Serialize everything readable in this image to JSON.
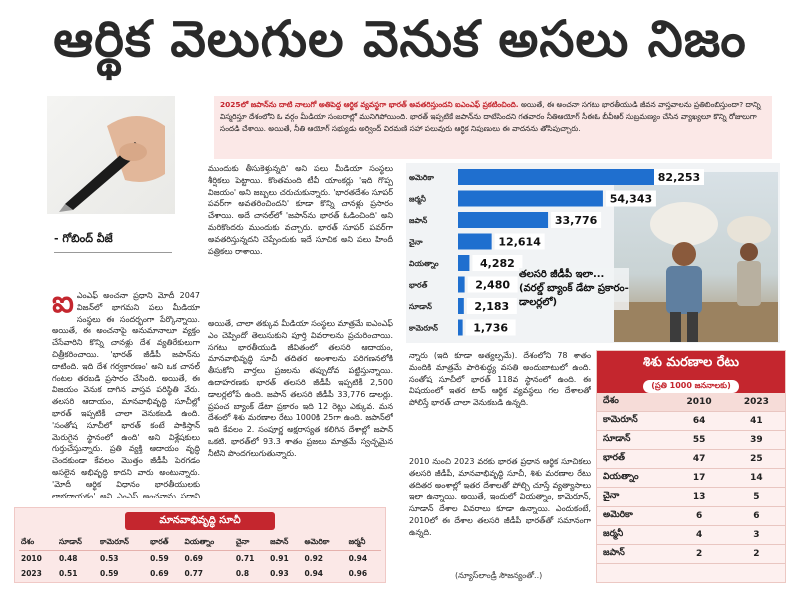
{
  "headline": "ఆర్థిక వెలుగుల వెనుక అసలు నిజం",
  "byline": "- గోబింద్ వీజే",
  "intro": {
    "highlight": "2025లో జపాన్‌ను దాటి నాలుగో అతిపెద్ద ఆర్థిక వ్యవస్థగా భారత్ అవతరిస్తుందని ఐఎంఎఫ్ ప్రకటించింది.",
    "text": " అయితే, ఈ అంచనా సగటు భారతీయుడి జీవన వాస్తవాలను ప్రతిబింబిస్తుందా? దాన్ని విస్మరిస్తూ దేశంలోని ఓ వర్గం మీడియా సంబరాల్లో మునిగిపోయింది. భారత్ ఇప్పటికే జపాన్‌ను దాటేసిందని గతవారం నీతిఆయోగ్ సీఈఓ బీవీఆర్ సుబ్రమణ్యం చేసిన వ్యాఖ్యలూ కొన్ని రోజులుగా సందడి చేశాయి. అయితే, నీతి ఆయోగ్ సభ్యుడు అర్వింద్ విరమణి సహా పలువురు ఆర్థిక నిపుణులు ఈ వాదనను తోసిపుచ్చారు."
  },
  "col1": {
    "dropcap": "ఐ",
    "text": "ఎంఎఫ్ అంచనా ప్రధాని మోదీ 2047 విజన్‌లో భాగమని పలు మీడియా సంస్థలు ఈ సందర్భంగా పేర్కొన్నాయి. అయితే, ఈ అంచనాపై అనుమానాలూ వ్యక్తం చేసేవారిని కొన్ని చానళ్లు దేశ వ్యతిరేకులుగా చిత్రీకరించాయి. 'భారత్ జీడీపీ జపాన్‌ను దాటింది. ఇది దేశ గర్వకారణం' అని ఒక చానల్ గంటల తరబడి ప్రసారం చేసింది. అయితే, ఈ విజయం వెనుక దాగిన వాస్తవ పరిస్థితి వేరు. తలసరి ఆదాయం, మానవాభివృద్ధి సూచీల్లో భారత్ ఇప్పటికీ చాలా వెనుకబడి ఉంది. 'సంతోష సూచీలో భారత్ కంటే పాకిస్తాన్ మెరుగైన స్థానంలో ఉంది' అని విశ్లేషకులు గుర్తుచేస్తున్నారు. ప్రతి వ్యక్తి ఆదాయం వృద్ధి చెందకుండా కేవలం మొత్తం జీడీపీ పెరగడం అసలైన అభివృద్ధి కాదని వారు అంటున్నారు. 'మోదీ ఆర్థిక విధానం భారతీయులకు లాభదాయకం' అని ఎంఎఫ్ అంచనాను ప్రధాని పేర్కొన్నారు."
  },
  "col2": {
    "text": "ముందుకు తీసుకెళ్తున్నది' అని పలు మీడియా సంస్థలు శీర్షికలు పెట్టాయి. కొంతమంది టీవీ యాంకర్లు 'ఇది గొప్ప విజయం' అని జబ్బలు చరుచుకున్నారు. 'భారతదేశం సూపర్ పవర్‌గా అవతరించిందని' కూడా కొన్ని చానళ్లు ప్రసారం చేశాయి. అదే చానల్‌లో 'జపాన్‌ను భారత్ ఓడించింది' అని మరికొందరు ముందుకు వచ్చారు. భారత్ సూపర్ పవర్‌గా అవతరిస్తున్నదని చెప్పేందుకు ఇదే సూచిక అని పలు హిందీ పత్రికలు రాశాయి."
  },
  "col3": {
    "text": "అయితే, చాలా తక్కువ మీడియా సంస్థలు మాత్రమే ఐఎంఎఫ్ ఎం చెప్పిందో తెలుసుకుని పూర్తి వివరాలను ప్రచురించాయి. సగటు భారతీయుడి జీవితంలో తలసరి ఆదాయం, మానవాభివృద్ధి సూచీ తదితర అంశాలను పరిగణనలోకి తీసుకోని వార్తలు ప్రజలను తప్పుదోవ పట్టిస్తున్నాయి. ఉదాహరణకు భారత్ తలసరి జీడీపీ ఇప్పటికీ 2,500 డాలర్లలోపే ఉంది. జపాన్ తలసరి జీడీపీ 33,776 డాలర్లు. ప్రపంచ బ్యాంక్ డేటా ప్రకారం ఇది 12 రెట్లు ఎక్కువ. మన దేశంలో శిశు మరణాల రేటు 1000కి 25గా ఉంది. జపాన్‌లో ఇది కేవలం 2. సంపూర్ణ అక్షరాస్యత కలిగిన దేశాల్లో జపాన్ ఒకటి. భారత్‌లో 93.3 శాతం ప్రజలు మాత్రమే స్వచ్ఛమైన నీటిని పొందగలుగుతున్నారు."
  },
  "col4": {
    "text": "న్నారు (ఇది కూడా అత్యల్పమే). దేశంలోని 78 శాతం మందికి మాత్రమే పారిశుద్ధ్య వసతి అందుబాటులో ఉంది. సంతోష సూచీలో భారత్ 118వ స్థానంలో ఉంది. ఈ విషయంలో ఇతర టాప్ ఆర్థిక వ్యవస్థలు గల దేశాలతో పోలిస్తే భారత్ చాలా వెనుకబడి ఉన్నది."
  },
  "col5": {
    "text": "2010 నుంచి 2023 వరకు భారత ప్రధాన ఆర్థిక సూచికలు తలసరి జీడీపీ, మానవాభివృద్ధి సూచీ, శిశు మరణాల రేటు తదితర అంశాల్లో ఇతర దేశాలతో పోల్చి చూస్తే వ్యత్యాసాలు ఇలా ఉన్నాయి. అయితే, ఇందులో వియత్నాం, కామెరూన్, సూడాన్ దేశాల వివరాలు కూడా ఉన్నాయి. ఎందుకంటే, 2010లో ఈ దేశాల తలసరి జీడీపీ భారత్‌తో సమానంగా ఉన్నది."
  },
  "credit": "(న్యూస్‌లాండ్రీ సౌజన్యంతో..)",
  "chart_caption": "తలసరి జీడీపీ ఇలా... (వరల్డ్ బ్యాంక్ డేటా ప్రకారం-డాలర్లలో)",
  "chart_data": {
    "type": "bar",
    "orientation": "horizontal",
    "categories": [
      "అమెరికా",
      "జర్మనీ",
      "జపాన్",
      "చైనా",
      "వియత్నాం",
      "భారత్",
      "సూడాన్",
      "కామెరూన్"
    ],
    "values": [
      82253,
      54343,
      33776,
      12614,
      4282,
      2480,
      2183,
      1736
    ],
    "labels": [
      "82,253",
      "54,343",
      "33,776",
      "12,614",
      "4,282",
      "2,480",
      "2,183",
      "1,736"
    ],
    "title": "తలసరి జీడీపీ ఇలా... (వరల్డ్ బ్యాంక్ డేటా ప్రకారం-డాలర్లలో)",
    "xlabel": "",
    "ylabel": "",
    "xlim": [
      0,
      90000
    ],
    "bar_color": "#1f6fcf",
    "value_box_color": "#ffffff"
  },
  "hdi": {
    "title": "మానవాభివృద్ధి సూచీ",
    "header": [
      "దేశం",
      "సూడాన్",
      "కామెరూన్",
      "భారత్",
      "వియత్నాం",
      "చైనా",
      "జపాన్",
      "అమెరికా",
      "జర్మనీ"
    ],
    "rows": [
      [
        "2010",
        "0.48",
        "0.53",
        "0.59",
        "0.69",
        "0.71",
        "0.91",
        "0.92",
        "0.94"
      ],
      [
        "2023",
        "0.51",
        "0.59",
        "0.69",
        "0.77",
        "0.8",
        "0.93",
        "0.94",
        "0.96"
      ]
    ]
  },
  "imr": {
    "title": "శిశు మరణాల రేటు",
    "subtitle": "(ప్రతి 1000 జననాలకు)",
    "header": [
      "దేశం",
      "2010",
      "2023"
    ],
    "rows": [
      [
        "కామెరూన్",
        "64",
        "41"
      ],
      [
        "సూడాన్",
        "55",
        "39"
      ],
      [
        "భారత్",
        "47",
        "25"
      ],
      [
        "వియత్నాం",
        "17",
        "14"
      ],
      [
        "చైనా",
        "13",
        "5"
      ],
      [
        "అమెరికా",
        "6",
        "6"
      ],
      [
        "జర్మనీ",
        "4",
        "3"
      ],
      [
        "జపాన్",
        "2",
        "2"
      ]
    ]
  },
  "colors": {
    "accent": "#c4262e",
    "tint": "#fbe8e7",
    "bar": "#1f6fcf"
  },
  "icons": {
    "pen_photo": "pen-hand-photo",
    "farmer_photo": "farmer-carrying-sack-photo"
  }
}
